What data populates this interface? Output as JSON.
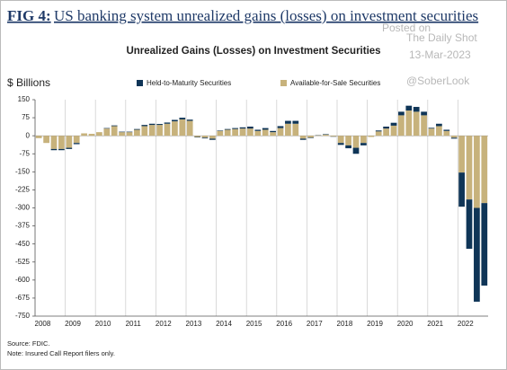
{
  "chart_data": {
    "type": "stacked_bar",
    "figure_label": "FIG 4:",
    "title": "US banking system unrealized gains (losses) on investment securities",
    "subtitle": "Unrealized Gains (Losses) on Investment Securities",
    "y_label": "$ Billions",
    "watermark": [
      "Posted on",
      "The Daily Shot",
      "13-Mar-2023",
      "@SoberLook"
    ],
    "notes": [
      "Source: FDIC.",
      "Note: Insured Call Report filers only."
    ],
    "categories": [
      "2008",
      null,
      null,
      null,
      "2009",
      null,
      null,
      null,
      "2010",
      null,
      null,
      null,
      "2011",
      null,
      null,
      null,
      "2012",
      null,
      null,
      null,
      "2013",
      null,
      null,
      null,
      "2014",
      null,
      null,
      null,
      "2015",
      null,
      null,
      null,
      "2016",
      null,
      null,
      null,
      "2017",
      null,
      null,
      null,
      "2018",
      null,
      null,
      null,
      "2019",
      null,
      null,
      null,
      "2020",
      null,
      null,
      null,
      "2021",
      null,
      null,
      null,
      "2022",
      null,
      null,
      null
    ],
    "series": [
      {
        "name": "Held-to-Maturity Securities",
        "color": "#0f3557",
        "values": [
          0,
          0,
          -5,
          -5,
          -5,
          -5,
          0,
          0,
          0,
          2,
          3,
          2,
          2,
          3,
          5,
          5,
          4,
          5,
          6,
          7,
          5,
          -2,
          -3,
          -5,
          2,
          3,
          4,
          5,
          8,
          5,
          7,
          5,
          8,
          12,
          12,
          -5,
          -2,
          1,
          2,
          -1,
          -8,
          -12,
          -25,
          -10,
          0,
          4,
          8,
          12,
          15,
          20,
          20,
          15,
          3,
          10,
          5,
          -4,
          -142,
          -205,
          -390,
          -343
        ]
      },
      {
        "name": "Available-for-Sale Securities",
        "color": "#c7b27c",
        "values": [
          -10,
          -30,
          -55,
          -55,
          -50,
          -30,
          10,
          8,
          15,
          30,
          40,
          15,
          15,
          25,
          40,
          45,
          45,
          50,
          60,
          68,
          62,
          -5,
          -8,
          -12,
          20,
          25,
          28,
          30,
          30,
          20,
          25,
          15,
          32,
          50,
          50,
          -12,
          -8,
          2,
          5,
          -3,
          -30,
          -40,
          -50,
          -30,
          -5,
          18,
          30,
          42,
          85,
          105,
          100,
          85,
          30,
          40,
          20,
          -8,
          -153,
          -265,
          -300,
          -280
        ]
      }
    ],
    "ylim": [
      -750,
      150
    ],
    "yticks": [
      150,
      75,
      0,
      -75,
      -150,
      -225,
      -300,
      -375,
      -450,
      -525,
      -600,
      -675,
      -750
    ],
    "grid": false,
    "legend": "top"
  }
}
